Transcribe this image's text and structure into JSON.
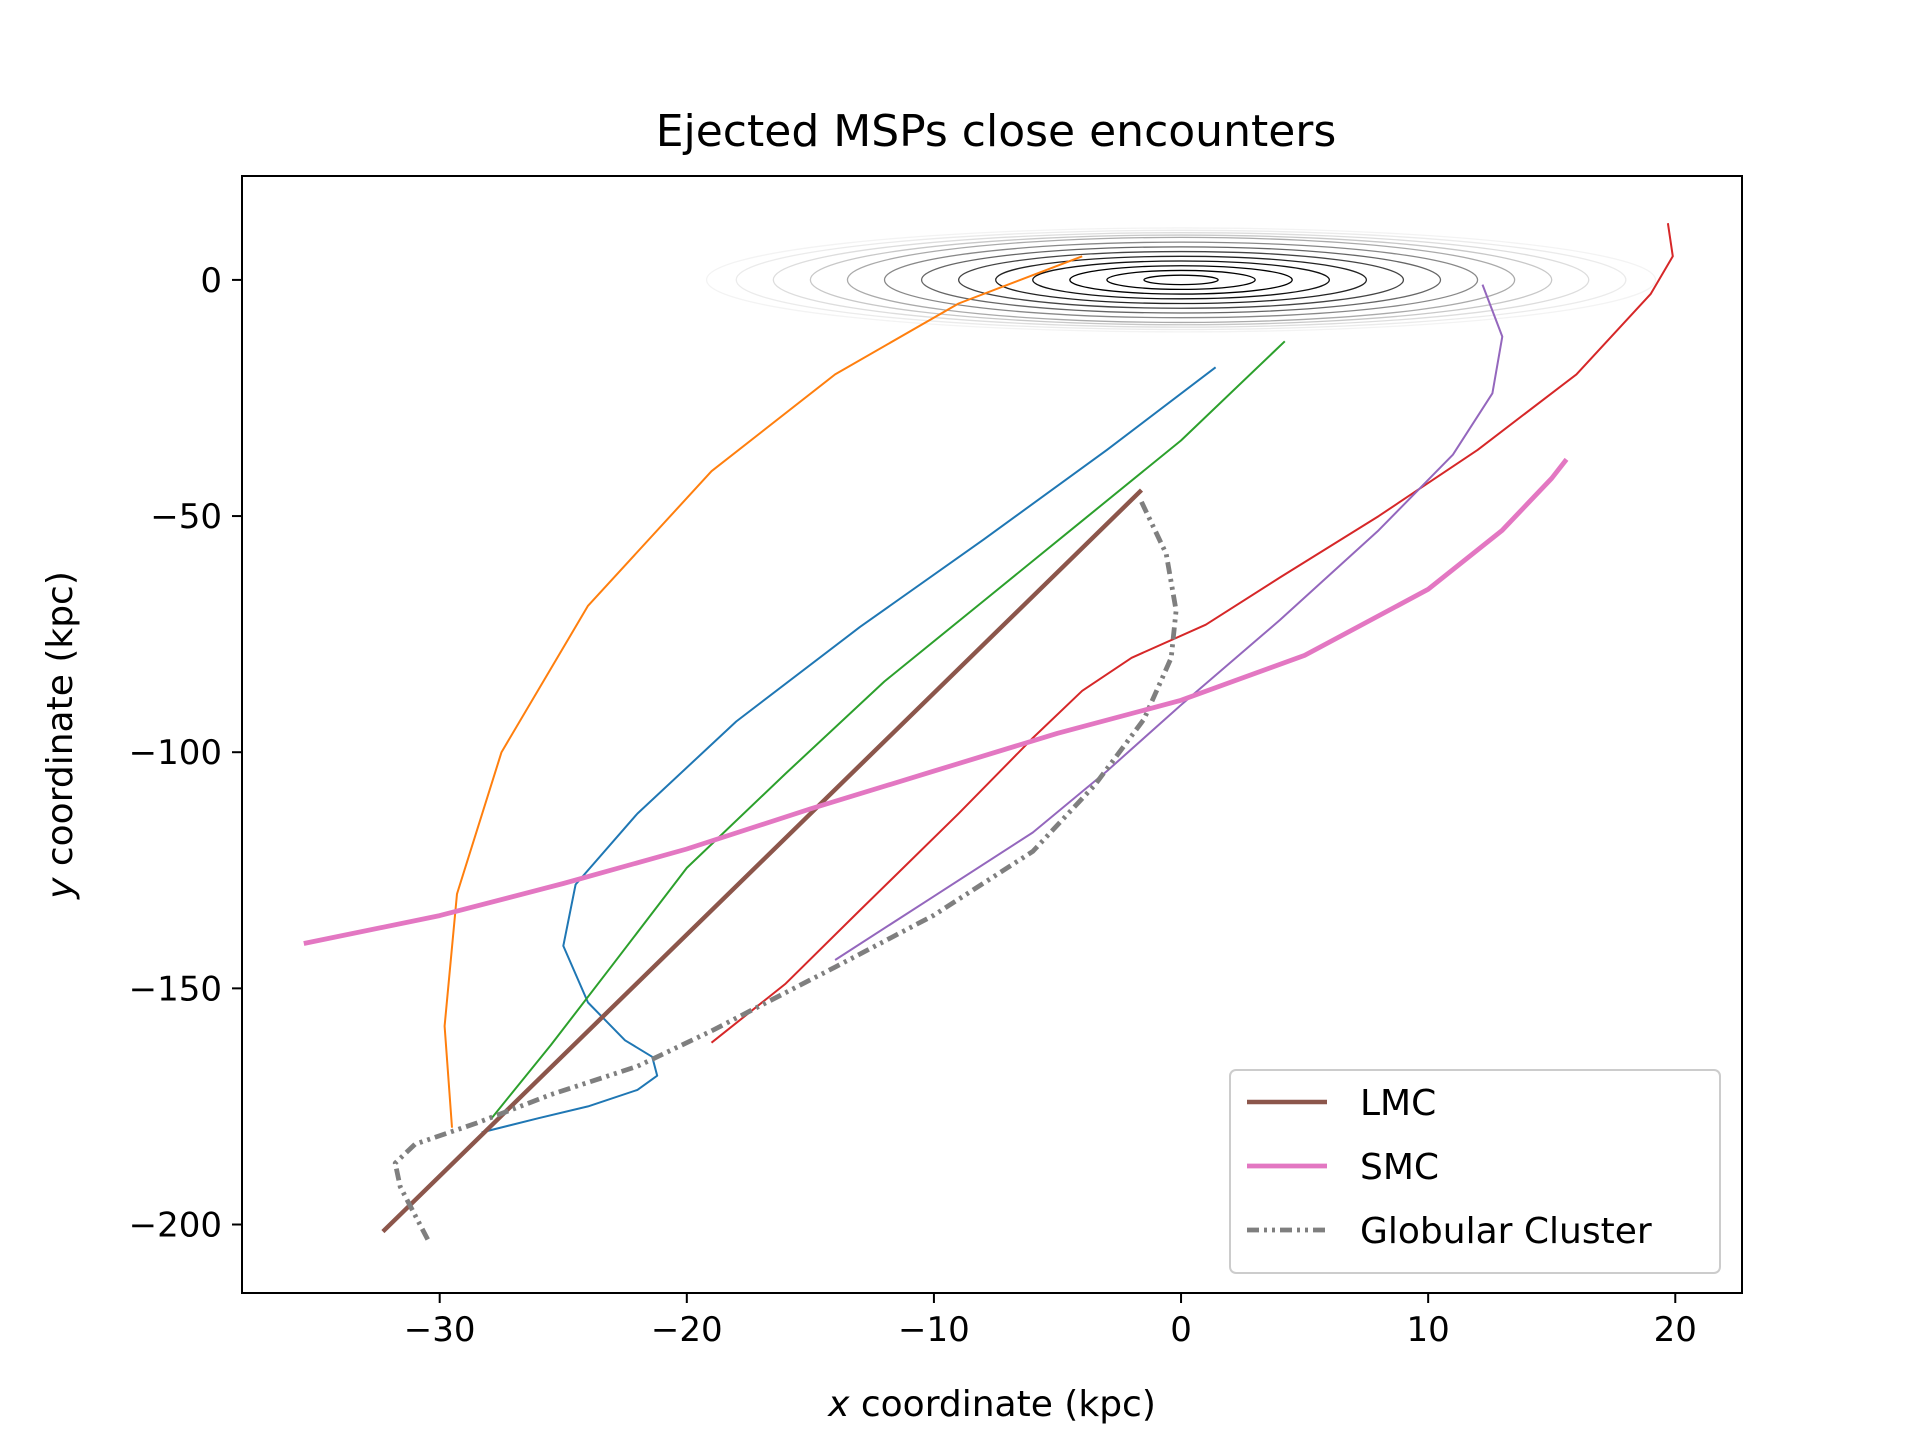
{
  "chart_data": {
    "type": "line",
    "title": "Ejected MSPs close encounters",
    "xlabel": "x coordinate (kpc)",
    "xlabel_var": "x",
    "xlabel_rest": " coordinate (kpc)",
    "ylabel": "y coordinate (kpc)",
    "ylabel_var": "y",
    "ylabel_rest": " coordinate (kpc)",
    "xlim": [
      -38,
      22.7
    ],
    "ylim": [
      -214.5,
      22
    ],
    "xticks": [
      -30,
      -20,
      -10,
      0,
      10,
      20
    ],
    "yticks": [
      0,
      -50,
      -100,
      -150,
      -200
    ],
    "legend_position": "lower-right",
    "grid": false,
    "disk": {
      "center": [
        0,
        0
      ],
      "rings": [
        {
          "a": 1.5,
          "b": 1.0,
          "color": "#000000"
        },
        {
          "a": 3.0,
          "b": 2.0,
          "color": "#000000"
        },
        {
          "a": 4.5,
          "b": 3.0,
          "color": "#000000"
        },
        {
          "a": 6.0,
          "b": 4.0,
          "color": "#111111"
        },
        {
          "a": 7.5,
          "b": 5.0,
          "color": "#222222"
        },
        {
          "a": 9.0,
          "b": 6.0,
          "color": "#444444"
        },
        {
          "a": 10.5,
          "b": 7.0,
          "color": "#666666"
        },
        {
          "a": 12.0,
          "b": 8.0,
          "color": "#888888"
        },
        {
          "a": 13.5,
          "b": 9.0,
          "color": "#aaaaaa"
        },
        {
          "a": 15.0,
          "b": 9.5,
          "color": "#c8c8c8"
        },
        {
          "a": 16.5,
          "b": 10.0,
          "color": "#dddddd"
        },
        {
          "a": 18.0,
          "b": 10.5,
          "color": "#ebebeb"
        },
        {
          "a": 19.2,
          "b": 11.0,
          "color": "#f3f3f3"
        }
      ]
    },
    "series": [
      {
        "name": "LMC",
        "legend": true,
        "color": "#8c564b",
        "width": 2.2,
        "dash": "",
        "x": [
          -32.3,
          -1.6
        ],
        "y": [
          -201.5,
          -44.5
        ]
      },
      {
        "name": "SMC",
        "legend": true,
        "color": "#e377c2",
        "width": 2.4,
        "dash": "",
        "x": [
          -35.5,
          -30,
          -25,
          -20,
          -15,
          -10,
          -5,
          0,
          5,
          10,
          13,
          15,
          15.6
        ],
        "y": [
          -140.5,
          -134.6,
          -127.8,
          -120.5,
          -112.0,
          -104.0,
          -96.0,
          -89.0,
          -79.5,
          -65.5,
          -53.0,
          -42.0,
          -38.0
        ]
      },
      {
        "name": "Globular Cluster",
        "legend": true,
        "color": "#7f7f7f",
        "width": 2.4,
        "dash": "12,5,3,5,3,5",
        "x": [
          -1.6,
          -0.6,
          -0.2,
          -0.4,
          -1.5,
          -3.5,
          -6,
          -10,
          -14,
          -19,
          -22,
          -25.5,
          -28.5,
          -31,
          -31.8,
          -31.6,
          -31.0,
          -30.4
        ],
        "y": [
          -47.0,
          -58.0,
          -70.0,
          -80.0,
          -93.0,
          -107.0,
          -121.0,
          -134.5,
          -145.5,
          -159.0,
          -166.5,
          -172.5,
          -178.5,
          -183.0,
          -187.0,
          -192.0,
          -198.0,
          -204.0
        ]
      },
      {
        "name": "",
        "legend": false,
        "color": "#1f77b4",
        "width": 1.0,
        "dash": "",
        "x": [
          1.4,
          -3,
          -8,
          -13,
          -18,
          -22,
          -24.5,
          -25.0,
          -24,
          -22.5,
          -21.4,
          -21.2,
          -22,
          -24,
          -26,
          -28.3
        ],
        "y": [
          -18.5,
          -36.0,
          -55.0,
          -73.5,
          -93.5,
          -113.0,
          -128.0,
          -141.0,
          -153.0,
          -161.0,
          -164.5,
          -168.5,
          -171.5,
          -175.0,
          -177.5,
          -180.5
        ]
      },
      {
        "name": "",
        "legend": false,
        "color": "#2ca02c",
        "width": 1.0,
        "dash": "",
        "x": [
          4.2,
          0,
          -4,
          -8,
          -12,
          -16,
          -20,
          -23,
          -25.5,
          -27.9
        ],
        "y": [
          -13.0,
          -34.0,
          -51.0,
          -68.0,
          -85.0,
          -104.5,
          -124.5,
          -145.0,
          -162.0,
          -177.5
        ]
      },
      {
        "name": "",
        "legend": false,
        "color": "#ff7f0e",
        "width": 1.0,
        "dash": "",
        "x": [
          -4.0,
          -9,
          -14,
          -19,
          -24,
          -27.5,
          -29.3,
          -29.8,
          -29.5
        ],
        "y": [
          5.0,
          -5.0,
          -20.0,
          -40.5,
          -69.0,
          -100.0,
          -130.0,
          -158.0,
          -179.5
        ]
      },
      {
        "name": "",
        "legend": false,
        "color": "#d62728",
        "width": 1.0,
        "dash": "",
        "x": [
          19.7,
          19.9,
          19.0,
          16,
          12,
          8,
          4,
          1,
          -2,
          -4,
          -6,
          -9,
          -13,
          -16,
          -19
        ],
        "y": [
          12.0,
          5.0,
          -3.0,
          -20.0,
          -36.0,
          -50.0,
          -63.0,
          -73.0,
          -80.0,
          -87.0,
          -97.0,
          -113.0,
          -133.5,
          -149.0,
          -161.5
        ]
      },
      {
        "name": "",
        "legend": false,
        "color": "#9467bd",
        "width": 1.0,
        "dash": "",
        "x": [
          12.2,
          13.0,
          12.6,
          11,
          8,
          4,
          0,
          -3,
          -6,
          -10,
          -14
        ],
        "y": [
          -1.0,
          -12.0,
          -24.0,
          -37.0,
          -53.0,
          -72.0,
          -90.0,
          -104.0,
          -117.0,
          -130.5,
          -144.0
        ]
      }
    ]
  }
}
